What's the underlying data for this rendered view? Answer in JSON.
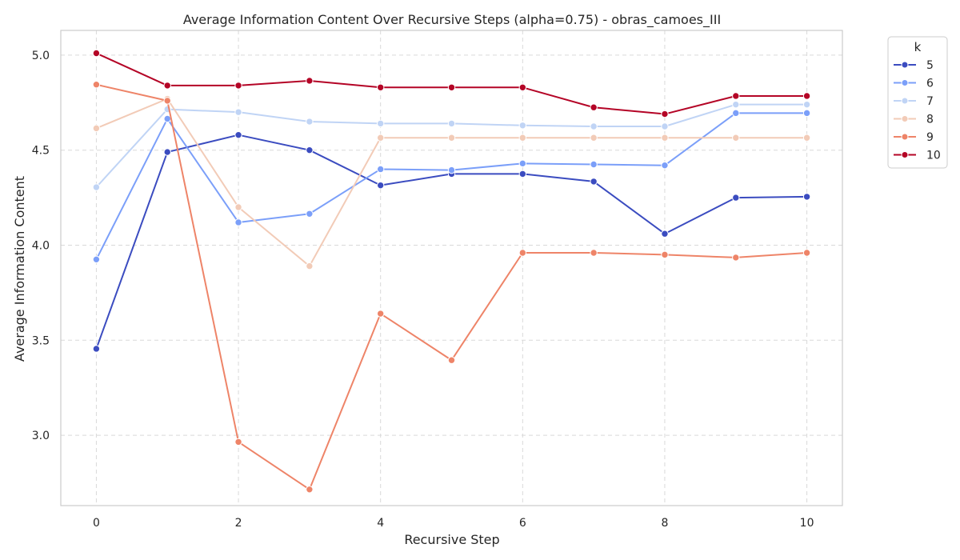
{
  "chart_data": {
    "type": "line",
    "title": "Average Information Content Over Recursive Steps (alpha=0.75) - obras_camoes_III",
    "xlabel": "Recursive Step",
    "ylabel": "Average Information Content",
    "xlim": [
      -0.5,
      10.5
    ],
    "ylim": [
      2.63,
      5.13
    ],
    "xticks": [
      0,
      2,
      4,
      6,
      8,
      10
    ],
    "yticks": [
      3.0,
      3.5,
      4.0,
      4.5,
      5.0
    ],
    "ytick_labels": [
      "3.0",
      "3.5",
      "4.0",
      "4.5",
      "5.0"
    ],
    "grid": true,
    "legend": {
      "title": "k",
      "placement": "outside-top-right"
    },
    "x": [
      0,
      1,
      2,
      3,
      4,
      5,
      6,
      7,
      8,
      9,
      10
    ],
    "series": [
      {
        "name": "5",
        "color": "#3b4cc0",
        "values": [
          3.455,
          4.49,
          4.58,
          4.5,
          4.315,
          4.375,
          4.375,
          4.335,
          4.06,
          4.25,
          4.255
        ]
      },
      {
        "name": "6",
        "color": "#7b9ff9",
        "values": [
          3.925,
          4.665,
          4.12,
          4.165,
          4.4,
          4.395,
          4.43,
          4.425,
          4.42,
          4.695,
          4.695
        ]
      },
      {
        "name": "7",
        "color": "#c0d4f5",
        "values": [
          4.305,
          4.715,
          4.7,
          4.65,
          4.64,
          4.64,
          4.63,
          4.625,
          4.625,
          4.74,
          4.74
        ]
      },
      {
        "name": "8",
        "color": "#f2cbb7",
        "values": [
          4.615,
          4.77,
          4.2,
          3.89,
          4.565,
          4.565,
          4.565,
          4.565,
          4.565,
          4.565,
          4.565
        ]
      },
      {
        "name": "9",
        "color": "#ee8468",
        "values": [
          4.845,
          4.76,
          2.965,
          2.715,
          3.64,
          3.395,
          3.96,
          3.96,
          3.95,
          3.935,
          3.96
        ]
      },
      {
        "name": "10",
        "color": "#b40426",
        "values": [
          5.01,
          4.84,
          4.84,
          4.865,
          4.83,
          4.83,
          4.83,
          4.725,
          4.69,
          4.785,
          4.785
        ]
      }
    ]
  }
}
